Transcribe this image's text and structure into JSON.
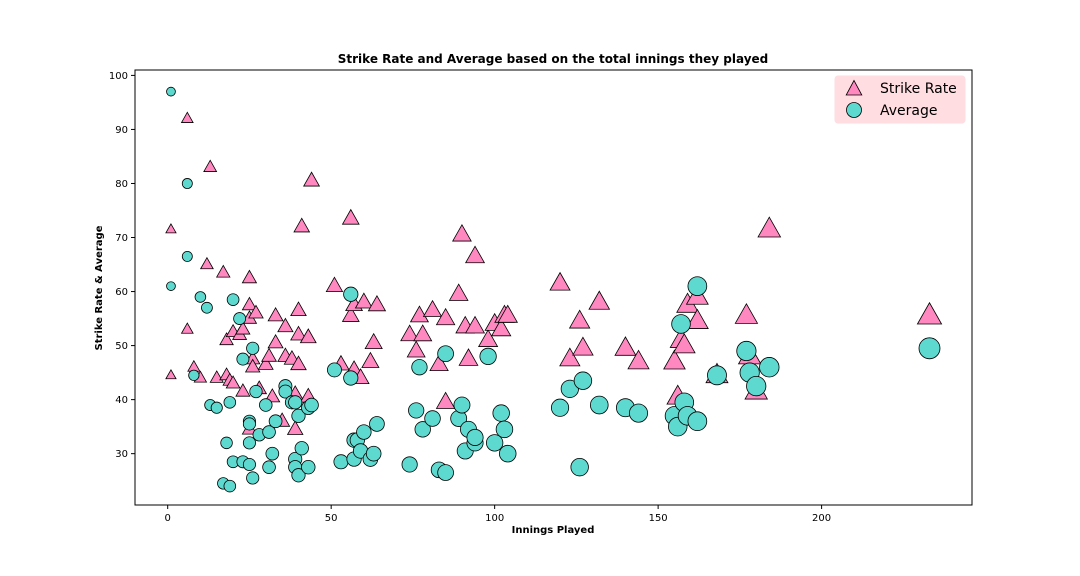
{
  "chart_data": {
    "type": "scatter",
    "title": "Strike Rate and Average based on the total innings they played",
    "xlabel": "Innings Played",
    "ylabel": "Strike Rate & Average",
    "xlim": [
      -10,
      246
    ],
    "ylim": [
      20.5,
      101
    ],
    "xticks": [
      0,
      50,
      100,
      150,
      200
    ],
    "yticks": [
      30,
      40,
      50,
      60,
      70,
      80,
      90,
      100
    ],
    "grid": false,
    "legend": {
      "placement": "top-right",
      "background": "#ffdde1"
    },
    "series": [
      {
        "name": "Strike Rate",
        "marker": "triangle",
        "color": "#ff88c0",
        "points": [
          {
            "x": 1,
            "y": 71.5
          },
          {
            "x": 1,
            "y": 44.5
          },
          {
            "x": 6,
            "y": 92
          },
          {
            "x": 6,
            "y": 53
          },
          {
            "x": 8,
            "y": 46
          },
          {
            "x": 10,
            "y": 44
          },
          {
            "x": 12,
            "y": 65
          },
          {
            "x": 13,
            "y": 83
          },
          {
            "x": 15,
            "y": 44
          },
          {
            "x": 17,
            "y": 63.5
          },
          {
            "x": 18,
            "y": 44.5
          },
          {
            "x": 18,
            "y": 51
          },
          {
            "x": 19,
            "y": 43.5
          },
          {
            "x": 20,
            "y": 52.5
          },
          {
            "x": 20,
            "y": 43
          },
          {
            "x": 22,
            "y": 52
          },
          {
            "x": 23,
            "y": 53
          },
          {
            "x": 23,
            "y": 41.5
          },
          {
            "x": 25,
            "y": 62.5
          },
          {
            "x": 25,
            "y": 57.5
          },
          {
            "x": 25,
            "y": 55
          },
          {
            "x": 25,
            "y": 34.5
          },
          {
            "x": 26,
            "y": 47.5
          },
          {
            "x": 26,
            "y": 46
          },
          {
            "x": 27,
            "y": 56
          },
          {
            "x": 28,
            "y": 42
          },
          {
            "x": 30,
            "y": 46.5
          },
          {
            "x": 31,
            "y": 48
          },
          {
            "x": 32,
            "y": 40.5
          },
          {
            "x": 33,
            "y": 55.5
          },
          {
            "x": 33,
            "y": 50.5
          },
          {
            "x": 35,
            "y": 36
          },
          {
            "x": 36,
            "y": 53.5
          },
          {
            "x": 36,
            "y": 48
          },
          {
            "x": 38,
            "y": 47.5
          },
          {
            "x": 39,
            "y": 41
          },
          {
            "x": 39,
            "y": 34.5
          },
          {
            "x": 40,
            "y": 56.5
          },
          {
            "x": 40,
            "y": 52
          },
          {
            "x": 40,
            "y": 46.5
          },
          {
            "x": 41,
            "y": 72
          },
          {
            "x": 43,
            "y": 51.5
          },
          {
            "x": 43,
            "y": 40.5
          },
          {
            "x": 44,
            "y": 80.5
          },
          {
            "x": 51,
            "y": 61
          },
          {
            "x": 53,
            "y": 46.5
          },
          {
            "x": 56,
            "y": 73.5
          },
          {
            "x": 56,
            "y": 55.5
          },
          {
            "x": 57,
            "y": 57.5
          },
          {
            "x": 57,
            "y": 45.5
          },
          {
            "x": 59,
            "y": 44
          },
          {
            "x": 60,
            "y": 58
          },
          {
            "x": 62,
            "y": 47
          },
          {
            "x": 63,
            "y": 50.5
          },
          {
            "x": 64,
            "y": 57.5
          },
          {
            "x": 74,
            "y": 52
          },
          {
            "x": 76,
            "y": 49
          },
          {
            "x": 77,
            "y": 55.5
          },
          {
            "x": 78,
            "y": 52
          },
          {
            "x": 81,
            "y": 56.5
          },
          {
            "x": 83,
            "y": 46.5
          },
          {
            "x": 85,
            "y": 55
          },
          {
            "x": 85,
            "y": 39.5
          },
          {
            "x": 89,
            "y": 59.5
          },
          {
            "x": 90,
            "y": 70.5
          },
          {
            "x": 91,
            "y": 53.5
          },
          {
            "x": 92,
            "y": 47.5
          },
          {
            "x": 94,
            "y": 66.5
          },
          {
            "x": 94,
            "y": 53.5
          },
          {
            "x": 98,
            "y": 51
          },
          {
            "x": 100,
            "y": 54
          },
          {
            "x": 102,
            "y": 53
          },
          {
            "x": 103,
            "y": 55.5
          },
          {
            "x": 104,
            "y": 55.5
          },
          {
            "x": 120,
            "y": 61.5
          },
          {
            "x": 123,
            "y": 47.5
          },
          {
            "x": 126,
            "y": 54.5
          },
          {
            "x": 127,
            "y": 49.5
          },
          {
            "x": 132,
            "y": 58
          },
          {
            "x": 140,
            "y": 49.5
          },
          {
            "x": 144,
            "y": 47
          },
          {
            "x": 155,
            "y": 47
          },
          {
            "x": 156,
            "y": 40.5
          },
          {
            "x": 157,
            "y": 51
          },
          {
            "x": 158,
            "y": 50
          },
          {
            "x": 159,
            "y": 57.5
          },
          {
            "x": 162,
            "y": 59
          },
          {
            "x": 162,
            "y": 54.5
          },
          {
            "x": 168,
            "y": 44.5
          },
          {
            "x": 177,
            "y": 55.5
          },
          {
            "x": 178,
            "y": 48
          },
          {
            "x": 180,
            "y": 41.5
          },
          {
            "x": 184,
            "y": 71.5
          },
          {
            "x": 233,
            "y": 55.5
          }
        ]
      },
      {
        "name": "Average",
        "marker": "circle",
        "color": "#5dd9cf",
        "points": [
          {
            "x": 1,
            "y": 97
          },
          {
            "x": 1,
            "y": 61
          },
          {
            "x": 6,
            "y": 80
          },
          {
            "x": 6,
            "y": 66.5
          },
          {
            "x": 8,
            "y": 44.5
          },
          {
            "x": 10,
            "y": 59
          },
          {
            "x": 12,
            "y": 57
          },
          {
            "x": 13,
            "y": 39
          },
          {
            "x": 15,
            "y": 38.5
          },
          {
            "x": 17,
            "y": 24.5
          },
          {
            "x": 18,
            "y": 32
          },
          {
            "x": 19,
            "y": 24
          },
          {
            "x": 19,
            "y": 39.5
          },
          {
            "x": 20,
            "y": 58.5
          },
          {
            "x": 20,
            "y": 28.5
          },
          {
            "x": 22,
            "y": 55
          },
          {
            "x": 23,
            "y": 47.5
          },
          {
            "x": 23,
            "y": 28.5
          },
          {
            "x": 25,
            "y": 36
          },
          {
            "x": 25,
            "y": 35.5
          },
          {
            "x": 25,
            "y": 32
          },
          {
            "x": 25,
            "y": 28
          },
          {
            "x": 26,
            "y": 49.5
          },
          {
            "x": 26,
            "y": 25.5
          },
          {
            "x": 27,
            "y": 41.5
          },
          {
            "x": 28,
            "y": 33.5
          },
          {
            "x": 30,
            "y": 39
          },
          {
            "x": 31,
            "y": 34
          },
          {
            "x": 31,
            "y": 27.5
          },
          {
            "x": 32,
            "y": 30
          },
          {
            "x": 33,
            "y": 36
          },
          {
            "x": 36,
            "y": 42.5
          },
          {
            "x": 36,
            "y": 41.5
          },
          {
            "x": 38,
            "y": 39.5
          },
          {
            "x": 39,
            "y": 39.5
          },
          {
            "x": 39,
            "y": 29
          },
          {
            "x": 39,
            "y": 27.5
          },
          {
            "x": 40,
            "y": 37
          },
          {
            "x": 40,
            "y": 26
          },
          {
            "x": 41,
            "y": 31
          },
          {
            "x": 43,
            "y": 38.5
          },
          {
            "x": 43,
            "y": 27.5
          },
          {
            "x": 44,
            "y": 39
          },
          {
            "x": 51,
            "y": 45.5
          },
          {
            "x": 53,
            "y": 28.5
          },
          {
            "x": 56,
            "y": 59.5
          },
          {
            "x": 56,
            "y": 44
          },
          {
            "x": 57,
            "y": 32.5
          },
          {
            "x": 57,
            "y": 29
          },
          {
            "x": 58,
            "y": 32.5
          },
          {
            "x": 59,
            "y": 30.5
          },
          {
            "x": 60,
            "y": 34
          },
          {
            "x": 62,
            "y": 29
          },
          {
            "x": 63,
            "y": 30
          },
          {
            "x": 64,
            "y": 35.5
          },
          {
            "x": 74,
            "y": 28
          },
          {
            "x": 76,
            "y": 38
          },
          {
            "x": 77,
            "y": 46
          },
          {
            "x": 78,
            "y": 34.5
          },
          {
            "x": 81,
            "y": 36.5
          },
          {
            "x": 83,
            "y": 27
          },
          {
            "x": 85,
            "y": 48.5
          },
          {
            "x": 85,
            "y": 26.5
          },
          {
            "x": 89,
            "y": 36.5
          },
          {
            "x": 90,
            "y": 39
          },
          {
            "x": 91,
            "y": 30.5
          },
          {
            "x": 92,
            "y": 34.5
          },
          {
            "x": 94,
            "y": 32
          },
          {
            "x": 94,
            "y": 33
          },
          {
            "x": 98,
            "y": 48
          },
          {
            "x": 100,
            "y": 32
          },
          {
            "x": 102,
            "y": 37.5
          },
          {
            "x": 103,
            "y": 34.5
          },
          {
            "x": 104,
            "y": 30
          },
          {
            "x": 120,
            "y": 38.5
          },
          {
            "x": 123,
            "y": 42
          },
          {
            "x": 126,
            "y": 27.5
          },
          {
            "x": 127,
            "y": 43.5
          },
          {
            "x": 132,
            "y": 39
          },
          {
            "x": 140,
            "y": 38.5
          },
          {
            "x": 144,
            "y": 37.5
          },
          {
            "x": 155,
            "y": 37
          },
          {
            "x": 156,
            "y": 35
          },
          {
            "x": 157,
            "y": 54
          },
          {
            "x": 158,
            "y": 39.5
          },
          {
            "x": 159,
            "y": 37
          },
          {
            "x": 162,
            "y": 61
          },
          {
            "x": 162,
            "y": 36
          },
          {
            "x": 168,
            "y": 44.5
          },
          {
            "x": 177,
            "y": 49
          },
          {
            "x": 178,
            "y": 45
          },
          {
            "x": 180,
            "y": 42.5
          },
          {
            "x": 184,
            "y": 46
          },
          {
            "x": 233,
            "y": 49.5
          }
        ]
      }
    ]
  }
}
